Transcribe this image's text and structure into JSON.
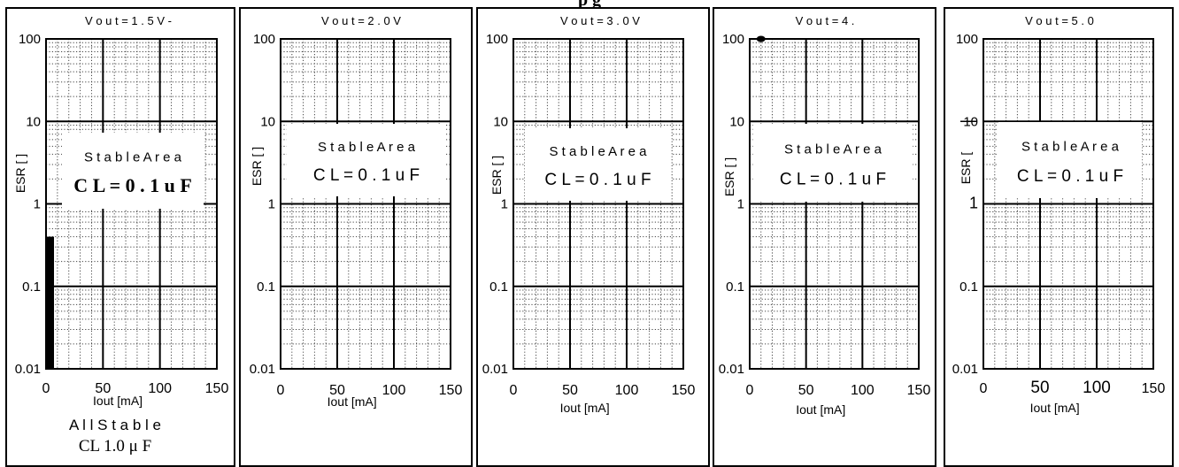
{
  "title": "p      g",
  "chart_data": [
    {
      "type": "line",
      "title": "V o u t = 1 . 5 V -",
      "xlabel": "Iout   [mA]",
      "ylabel": "ESR [  ]",
      "xlim": [
        0,
        150
      ],
      "ylim": [
        0.01,
        100
      ],
      "yscale": "log",
      "grid": true,
      "x_ticks": [
        "0",
        "50",
        "100",
        "150"
      ],
      "y_ticks": [
        "100",
        "10",
        "1",
        "0.1",
        "0.01"
      ],
      "region_text": [
        "S t a b l e   A r e a",
        "C L = 0 . 1 u F"
      ],
      "region": {
        "x": [
          0,
          150
        ],
        "y": [
          1,
          10
        ]
      },
      "bar": {
        "x": [
          0,
          7
        ],
        "y": [
          0.01,
          0.4
        ]
      },
      "footer": [
        "A l l   S t a b l e",
        "CL  1.0 μ F"
      ]
    },
    {
      "type": "line",
      "title": "V o u t = 2 . 0 V",
      "xlabel": "Iout   [mA]",
      "ylabel": "ESR [  ]",
      "xlim": [
        0,
        150
      ],
      "ylim": [
        0.01,
        100
      ],
      "yscale": "log",
      "grid": true,
      "x_ticks": [
        "0",
        "50",
        "100",
        "150"
      ],
      "y_ticks": [
        "100",
        "10",
        "1",
        "0.1",
        "0.01"
      ],
      "region_text": [
        "S t a b l e   A r e a",
        "C L = 0 . 1 u F"
      ],
      "region": {
        "x": [
          0,
          150
        ],
        "y": [
          1,
          10
        ]
      }
    },
    {
      "type": "line",
      "title": "V o u t = 3 . 0 V",
      "xlabel": "Iout   [mA]",
      "ylabel": "ESR [  ]",
      "xlim": [
        0,
        150
      ],
      "ylim": [
        0.01,
        100
      ],
      "yscale": "log",
      "grid": true,
      "x_ticks": [
        "0",
        "50",
        "100",
        "150"
      ],
      "y_ticks": [
        "100",
        "10",
        "1",
        "0.1",
        "0.01"
      ],
      "region_text": [
        "S t a b l e   A r e a",
        "C L = 0 . 1 u F"
      ],
      "region": {
        "x": [
          0,
          150
        ],
        "y": [
          1,
          10
        ]
      }
    },
    {
      "type": "line",
      "title": "V o u t = 4 .",
      "xlabel": "Iout   [mA]",
      "ylabel": "ESR [  ]",
      "xlim": [
        0,
        150
      ],
      "ylim": [
        0.01,
        100
      ],
      "yscale": "log",
      "grid": true,
      "x_ticks": [
        "0",
        "50",
        "100",
        "150"
      ],
      "y_ticks": [
        "100",
        "10",
        "1",
        "0.1",
        "0.01"
      ],
      "region_text": [
        "S t a b l e   A r e a",
        "C L = 0 . 1 u F"
      ],
      "region": {
        "x": [
          0,
          150
        ],
        "y": [
          1,
          10
        ]
      },
      "marker": {
        "x": 10,
        "y": 100
      }
    },
    {
      "type": "line",
      "title": "V o u t = 5 . 0",
      "xlabel": "Iout   [mA]",
      "ylabel": "ESR [",
      "xlim": [
        0,
        150
      ],
      "ylim": [
        0.01,
        100
      ],
      "yscale": "log",
      "grid": true,
      "x_ticks": [
        "0",
        "50",
        "100",
        "150"
      ],
      "y_ticks": [
        "100",
        "10",
        "1",
        "0.1",
        "0.01"
      ],
      "region_text": [
        "S t a b l e   A r e a",
        "C L = 0 . 1 u F"
      ],
      "region": {
        "x": [
          0,
          150
        ],
        "y": [
          1,
          10
        ]
      }
    }
  ]
}
